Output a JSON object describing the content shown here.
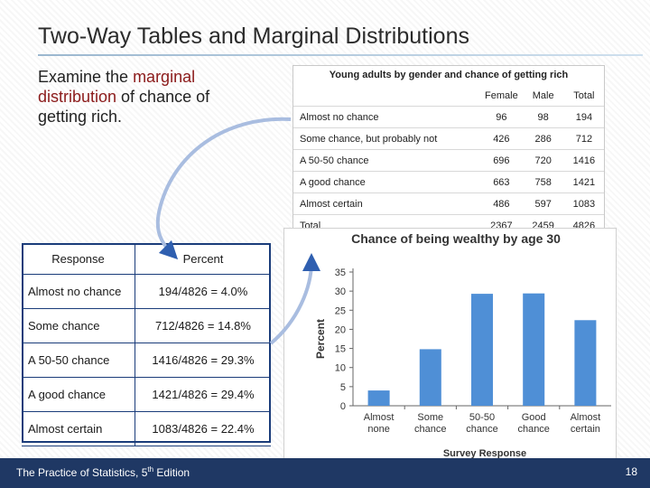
{
  "slide": {
    "title": "Two-Way Tables and Marginal Distributions",
    "intro_before": "Examine the ",
    "intro_highlight": "marginal distribution",
    "intro_after": " of chance of getting rich.",
    "highlight_color": "#8b1a1a",
    "footer_before": "The Practice of Statistics, 5",
    "footer_sup": "th",
    "footer_after": " Edition",
    "page_number": "18"
  },
  "two_way_table": {
    "caption": "Young adults by gender and chance of getting rich",
    "headers": [
      "Female",
      "Male",
      "Total"
    ],
    "rows": [
      {
        "label": "Almost no chance",
        "female": "96",
        "male": "98",
        "total": "194"
      },
      {
        "label": "Some chance, but probably not",
        "female": "426",
        "male": "286",
        "total": "712"
      },
      {
        "label": "A 50-50 chance",
        "female": "696",
        "male": "720",
        "total": "1416"
      },
      {
        "label": "A good chance",
        "female": "663",
        "male": "758",
        "total": "1421"
      },
      {
        "label": "Almost certain",
        "female": "486",
        "male": "597",
        "total": "1083"
      }
    ],
    "total_row": {
      "label": "Total",
      "female": "2367",
      "male": "2459",
      "total": "4826"
    }
  },
  "response_table": {
    "headers": [
      "Response",
      "Percent"
    ],
    "rows": [
      {
        "response": "Almost no chance",
        "percent": "194/4826 = 4.0%"
      },
      {
        "response": "Some chance",
        "percent": "712/4826 = 14.8%"
      },
      {
        "response": "A 50-50 chance",
        "percent": "1416/4826 = 29.3%"
      },
      {
        "response": "A good chance",
        "percent": "1421/4826 = 29.4%"
      },
      {
        "response": "Almost certain",
        "percent": "1083/4826 = 22.4%"
      }
    ]
  },
  "chart_data": {
    "type": "bar",
    "title": "Chance of being wealthy by age 30",
    "xlabel": "Survey Response",
    "ylabel": "Percent",
    "categories": [
      [
        "Almost",
        "none"
      ],
      [
        "Some",
        "chance"
      ],
      [
        "50-50",
        "chance"
      ],
      [
        "Good",
        "chance"
      ],
      [
        "Almost",
        "certain"
      ]
    ],
    "values": [
      4.0,
      14.8,
      29.3,
      29.4,
      22.4
    ],
    "ylim": [
      0,
      35
    ],
    "yticks": [
      0,
      5,
      10,
      15,
      20,
      25,
      30,
      35
    ],
    "bar_color": "#4f8fd6",
    "grid": false
  }
}
